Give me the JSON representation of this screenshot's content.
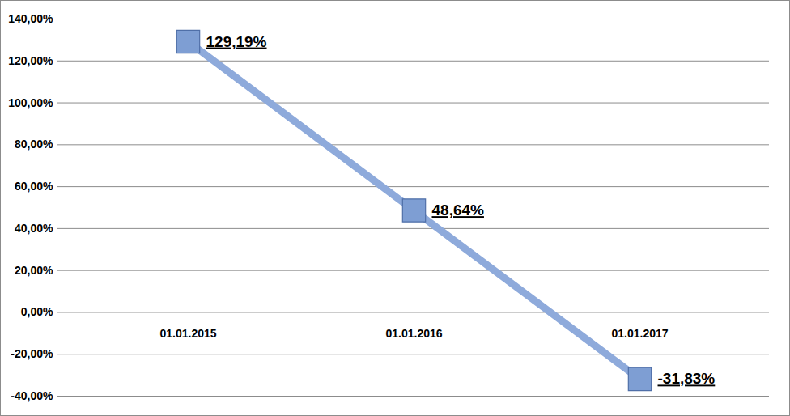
{
  "chart_data": {
    "type": "line",
    "categories": [
      "01.01.2015",
      "01.01.2016",
      "01.01.2017"
    ],
    "values": [
      129.19,
      48.64,
      -31.83
    ],
    "value_labels": [
      "129,19%",
      "48,64%",
      "-31,83%"
    ],
    "data_labels": true,
    "color": "#8eaadb",
    "marker": "square",
    "ylim": [
      -40,
      140
    ],
    "yticks": [
      {
        "value": -40,
        "label": "-40,00%"
      },
      {
        "value": -20,
        "label": "-20,00%"
      },
      {
        "value": 0,
        "label": "0,00%"
      },
      {
        "value": 20,
        "label": "20,00%"
      },
      {
        "value": 40,
        "label": "40,00%"
      },
      {
        "value": 60,
        "label": "60,00%"
      },
      {
        "value": 80,
        "label": "80,00%"
      },
      {
        "value": 100,
        "label": "100,00%"
      },
      {
        "value": 120,
        "label": "120,00%"
      },
      {
        "value": 140,
        "label": "140,00%"
      }
    ],
    "grid": true
  }
}
